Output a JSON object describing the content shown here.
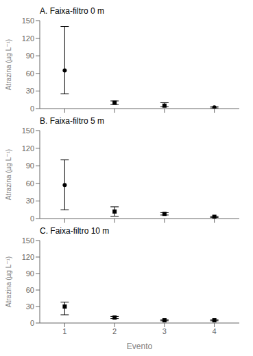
{
  "chart_data": [
    {
      "type": "scatter",
      "title": "A. Faixa-filtro 0 m",
      "x": [
        1,
        2,
        3,
        4
      ],
      "values": [
        65,
        10,
        5,
        2
      ],
      "error_low": [
        40,
        3,
        2,
        1
      ],
      "error_high": [
        75,
        3,
        5,
        1
      ],
      "markers": [
        "circle",
        "square",
        "square",
        "circle"
      ],
      "color": "black",
      "ylabel": "Atrazina (µg L⁻¹)",
      "xlim": [
        0.5,
        4.5
      ],
      "xticks": [
        1,
        2,
        3,
        4
      ],
      "ylim": [
        0,
        150
      ],
      "yticks": [
        0,
        30,
        60,
        90,
        120,
        150
      ],
      "grid": false,
      "tick_labels": "y"
    },
    {
      "type": "scatter",
      "title": "B. Faixa-filtro 5 m",
      "x": [
        1,
        2,
        3,
        4
      ],
      "values": [
        57,
        12,
        8,
        3
      ],
      "error_low": [
        42,
        8,
        2,
        1
      ],
      "error_high": [
        43,
        8,
        2,
        1
      ],
      "markers": [
        "circle",
        "square",
        "square",
        "square"
      ],
      "color": "black",
      "ylabel": "Atrazina (µg L⁻¹)",
      "xlim": [
        0.5,
        4.5
      ],
      "xticks": [
        1,
        2,
        3,
        4
      ],
      "ylim": [
        0,
        150
      ],
      "yticks": [
        0,
        30,
        60,
        90,
        120,
        150
      ],
      "grid": false,
      "tick_labels": "y"
    },
    {
      "type": "scatter",
      "title": "C. Faixa-filtro 10 m",
      "x": [
        1,
        2,
        3,
        4
      ],
      "values": [
        30,
        10,
        5,
        5
      ],
      "error_low": [
        15,
        2,
        1,
        1
      ],
      "error_high": [
        8,
        2,
        1,
        1
      ],
      "markers": [
        "square",
        "square",
        "square",
        "square"
      ],
      "color": "black",
      "ylabel": "Atrazina (µg L⁻¹)",
      "xlabel": "Evento",
      "xlim": [
        0.5,
        4.5
      ],
      "xticks": [
        1,
        2,
        3,
        4
      ],
      "ylim": [
        0,
        150
      ],
      "yticks": [
        0,
        30,
        60,
        90,
        120,
        150
      ],
      "grid": false,
      "tick_labels": true
    }
  ]
}
